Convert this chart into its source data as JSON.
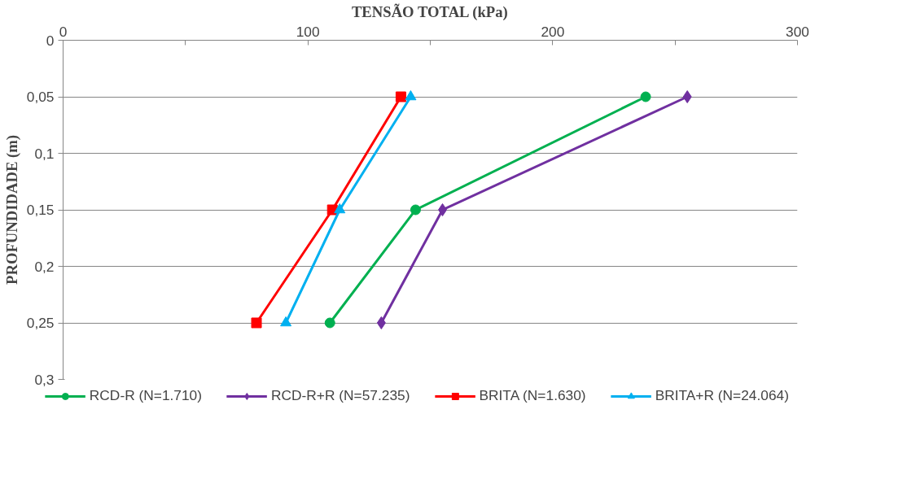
{
  "chart_data": {
    "type": "line",
    "xlabel": "TENSÃO TOTAL (kPa)",
    "ylabel": "PROFUNDIDADE (m)",
    "xlim": [
      0,
      300
    ],
    "xticks": [
      0,
      {
        "value": 50,
        "label": null
      },
      100,
      {
        "value": 150,
        "label": null
      },
      200,
      {
        "value": 250,
        "label": null
      },
      300
    ],
    "ylim": [
      0.3,
      0
    ],
    "yticks": [
      0,
      {
        "value": 0.05,
        "label": "0,05"
      },
      {
        "value": 0.1,
        "label": "0,1"
      },
      {
        "value": 0.15,
        "label": "0,15"
      },
      {
        "value": 0.2,
        "label": "0,2"
      },
      {
        "value": 0.25,
        "label": "0,25"
      },
      {
        "value": 0.3,
        "label": "0,3"
      }
    ],
    "grid": "y",
    "legend": "bottom",
    "line_style": "solid",
    "series": [
      {
        "name": "RCD-R (N=1.710)",
        "color": "#00b050",
        "marker": "circle",
        "x": [
          238,
          144,
          109
        ],
        "values": [
          0.05,
          0.15,
          0.25
        ]
      },
      {
        "name": "RCD-R+R (N=57.235)",
        "color": "#7030a0",
        "marker": "diamond",
        "x": [
          255,
          155,
          130
        ],
        "values": [
          0.05,
          0.15,
          0.25
        ]
      },
      {
        "name": "BRITA (N=1.630)",
        "color": "#ff0000",
        "marker": "square",
        "x": [
          138,
          110,
          79
        ],
        "values": [
          0.05,
          0.15,
          0.25
        ]
      },
      {
        "name": "BRITA+R (N=24.064)",
        "color": "#00b0f0",
        "marker": "triangle",
        "x": [
          142,
          113,
          91
        ],
        "values": [
          0.05,
          0.15,
          0.25
        ]
      }
    ]
  }
}
